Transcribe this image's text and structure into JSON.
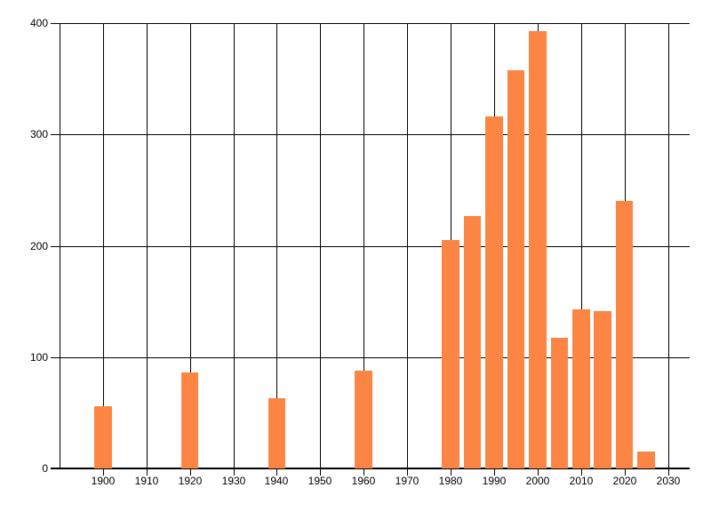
{
  "chart_data": {
    "type": "bar",
    "title": "",
    "x": [
      1900,
      1920,
      1940,
      1960,
      1980,
      1985,
      1990,
      1995,
      2000,
      2005,
      2010,
      2015,
      2020,
      2025
    ],
    "values": [
      56,
      86,
      63,
      88,
      205,
      227,
      316,
      358,
      393,
      117,
      143,
      141,
      240,
      15
    ],
    "bar_color": "#FC8544",
    "bar_width_years": 4,
    "xlim": [
      1890,
      2035
    ],
    "ylim": [
      0,
      400
    ],
    "x_ticks": [
      1900,
      1910,
      1920,
      1930,
      1940,
      1950,
      1960,
      1970,
      1980,
      1990,
      2000,
      2010,
      2020,
      2030
    ],
    "x_tick_labels": [
      "1900",
      "1910",
      "1920",
      "1930",
      "1940",
      "1950",
      "1960",
      "1970",
      "1980",
      "1990",
      "2000",
      "2010",
      "2020",
      "2030"
    ],
    "y_ticks": [
      0,
      100,
      200,
      300,
      400
    ],
    "y_tick_labels": [
      "0",
      "100",
      "200",
      "300",
      "400"
    ],
    "grid": true,
    "grid_color": "#000000",
    "axis_color": "#000000",
    "background": "#FFFFFF",
    "legend": "none"
  }
}
